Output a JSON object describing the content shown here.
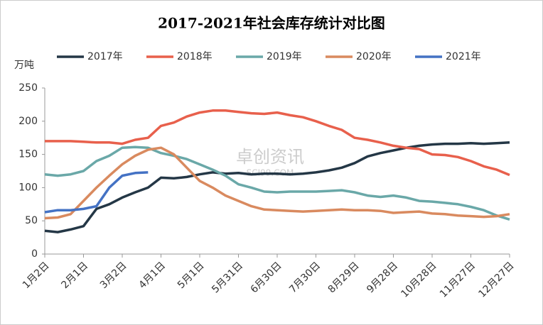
{
  "chart_data": {
    "type": "line",
    "title": "2017-2021年社会库存统计对比图",
    "y_label": "万吨",
    "watermark": "卓创资讯",
    "watermark_sub": "SCI99.COM",
    "categories": [
      "1月2日",
      null,
      null,
      "2月1日",
      null,
      null,
      "3月2日",
      null,
      null,
      "4月1日",
      null,
      null,
      "5月1日",
      null,
      null,
      "5月31日",
      null,
      null,
      "6月30日",
      null,
      null,
      "7月30日",
      null,
      null,
      "8月29日",
      null,
      null,
      "9月28日",
      null,
      null,
      "10月28日",
      null,
      null,
      "11月27日",
      null,
      null,
      "12月27日"
    ],
    "series": [
      {
        "name": "2017年",
        "color": "#243746",
        "values": [
          35,
          33,
          37,
          42,
          68,
          75,
          85,
          93,
          100,
          115,
          114,
          116,
          120,
          123,
          121,
          122,
          120,
          121,
          121,
          120,
          121,
          123,
          126,
          130,
          137,
          147,
          152,
          156,
          160,
          163,
          165,
          166,
          166,
          167,
          166,
          167,
          168
        ]
      },
      {
        "name": "2018年",
        "color": "#e8604c",
        "values": [
          170,
          170,
          170,
          169,
          168,
          168,
          166,
          172,
          175,
          193,
          198,
          207,
          213,
          216,
          216,
          214,
          212,
          211,
          213,
          209,
          206,
          200,
          193,
          187,
          175,
          172,
          168,
          163,
          160,
          158,
          150,
          149,
          146,
          140,
          132,
          127,
          119
        ]
      },
      {
        "name": "2019年",
        "color": "#6aa8a8",
        "values": [
          120,
          118,
          120,
          125,
          140,
          148,
          160,
          161,
          160,
          152,
          148,
          143,
          135,
          127,
          118,
          105,
          100,
          94,
          93,
          94,
          94,
          94,
          95,
          96,
          93,
          88,
          86,
          88,
          85,
          80,
          79,
          77,
          75,
          71,
          66,
          58,
          52
        ]
      },
      {
        "name": "2020年",
        "color": "#d98a5f",
        "values": [
          54,
          55,
          60,
          80,
          100,
          118,
          135,
          148,
          157,
          160,
          150,
          130,
          110,
          100,
          88,
          80,
          72,
          67,
          66,
          65,
          64,
          65,
          66,
          67,
          66,
          66,
          65,
          62,
          63,
          64,
          61,
          60,
          58,
          57,
          56,
          57,
          60
        ]
      },
      {
        "name": "2021年",
        "color": "#4472c4",
        "values": [
          63,
          66,
          66,
          68,
          72,
          100,
          118,
          122,
          123,
          null,
          null,
          null,
          null,
          null,
          null,
          null,
          null,
          null,
          null,
          null,
          null,
          null,
          null,
          null,
          null,
          null,
          null,
          null,
          null,
          null,
          null,
          null,
          null,
          null,
          null,
          null,
          null
        ]
      }
    ],
    "ylim": [
      0,
      250
    ],
    "yticks": [
      0,
      50,
      100,
      150,
      200,
      250
    ],
    "grid": false,
    "legend": "top"
  }
}
